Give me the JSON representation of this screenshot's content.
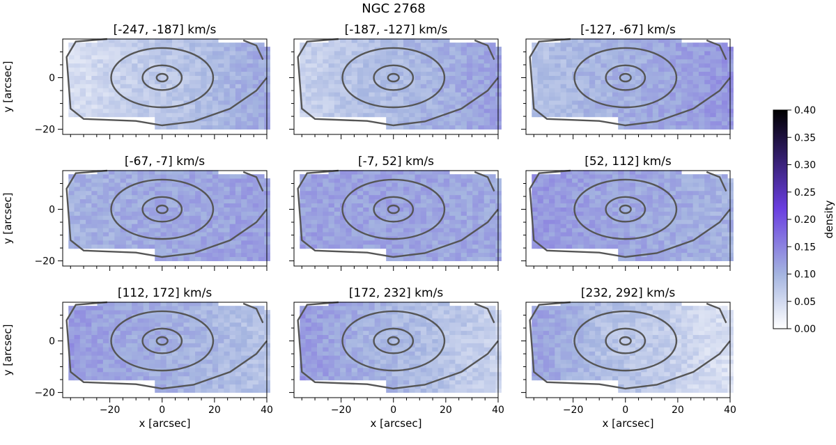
{
  "chart_data": {
    "type": "heatmap",
    "title": "NGC 2768",
    "xlabel": "x [arcsec]",
    "ylabel": "y [arcsec]",
    "xlim": [
      -38,
      40
    ],
    "ylim": [
      -22,
      15
    ],
    "x_ticks": [
      -20,
      0,
      20,
      40
    ],
    "x_tick_labels": [
      "−20",
      "0",
      "20",
      "40"
    ],
    "y_ticks": [
      -20,
      0
    ],
    "y_tick_labels": [
      "−20",
      "0"
    ],
    "colorbar": {
      "label": "density",
      "min": 0.0,
      "max": 0.4,
      "ticks": [
        0.0,
        0.05,
        0.1,
        0.15,
        0.2,
        0.25,
        0.3,
        0.35,
        0.4
      ],
      "tick_labels": [
        "0.00",
        "0.05",
        "0.10",
        "0.15",
        "0.20",
        "0.25",
        "0.30",
        "0.35",
        "0.40"
      ],
      "colors": [
        "#ffffff",
        "#a4b4e0",
        "#6a3ee0",
        "#000000"
      ]
    },
    "contour_color": "#555555",
    "panels": [
      {
        "label": "[-247, -187] km/s",
        "left_density": 0.04,
        "right_density": 0.11,
        "center_density": 0.07
      },
      {
        "label": "[-187, -127] km/s",
        "left_density": 0.06,
        "right_density": 0.12,
        "center_density": 0.09
      },
      {
        "label": "[-127, -67] km/s",
        "left_density": 0.08,
        "right_density": 0.13,
        "center_density": 0.1
      },
      {
        "label": "[-67, -7] km/s",
        "left_density": 0.1,
        "right_density": 0.12,
        "center_density": 0.11
      },
      {
        "label": "[-7, 52] km/s",
        "left_density": 0.12,
        "right_density": 0.11,
        "center_density": 0.12
      },
      {
        "label": "[52, 112] km/s",
        "left_density": 0.13,
        "right_density": 0.1,
        "center_density": 0.11
      },
      {
        "label": "[112, 172] km/s",
        "left_density": 0.13,
        "right_density": 0.08,
        "center_density": 0.1
      },
      {
        "label": "[172, 232] km/s",
        "left_density": 0.13,
        "right_density": 0.06,
        "center_density": 0.09
      },
      {
        "label": "[232, 292] km/s",
        "left_density": 0.12,
        "right_density": 0.04,
        "center_density": 0.07
      }
    ],
    "contours": [
      {
        "name": "isophote-1",
        "rx": 2.1,
        "ry": 1.5
      },
      {
        "name": "isophote-2",
        "rx": 7.5,
        "ry": 4.8
      },
      {
        "name": "isophote-3",
        "rx": 19.5,
        "ry": 11.5
      },
      {
        "name": "outer-boundary"
      }
    ]
  }
}
